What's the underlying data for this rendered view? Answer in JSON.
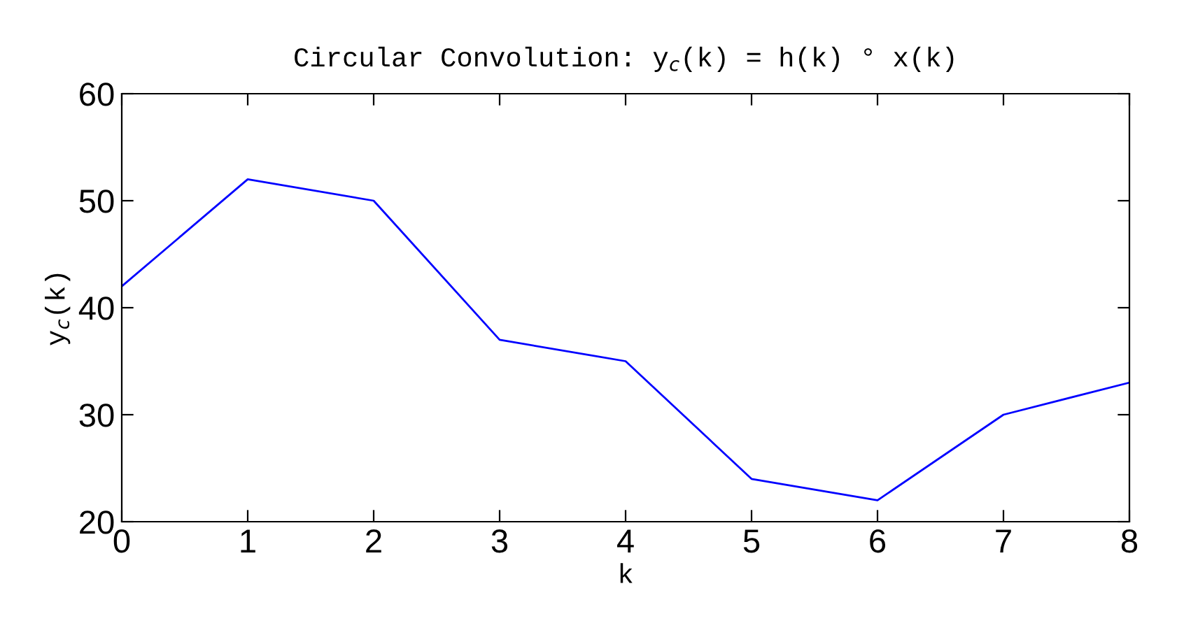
{
  "chart_data": {
    "type": "line",
    "title": "Circular Convolution: y$_{c}$(k) = h(k) ° x(k)",
    "xlabel": "k",
    "ylabel": "y$_{c}$(k)",
    "x": [
      0,
      1,
      2,
      3,
      4,
      5,
      6,
      7,
      8
    ],
    "series": [
      {
        "color": "#0000ff",
        "values": [
          42,
          52,
          50,
          37,
          35,
          24,
          22,
          30,
          33
        ]
      }
    ],
    "xlim": [
      0,
      8
    ],
    "xticks": [
      0,
      1,
      2,
      3,
      4,
      5,
      6,
      7,
      8
    ],
    "ylim": [
      20,
      60
    ],
    "yticks": [
      20,
      30,
      40,
      50,
      60
    ],
    "grid": false,
    "legend": false,
    "marker": "none",
    "line_style": "solid"
  }
}
